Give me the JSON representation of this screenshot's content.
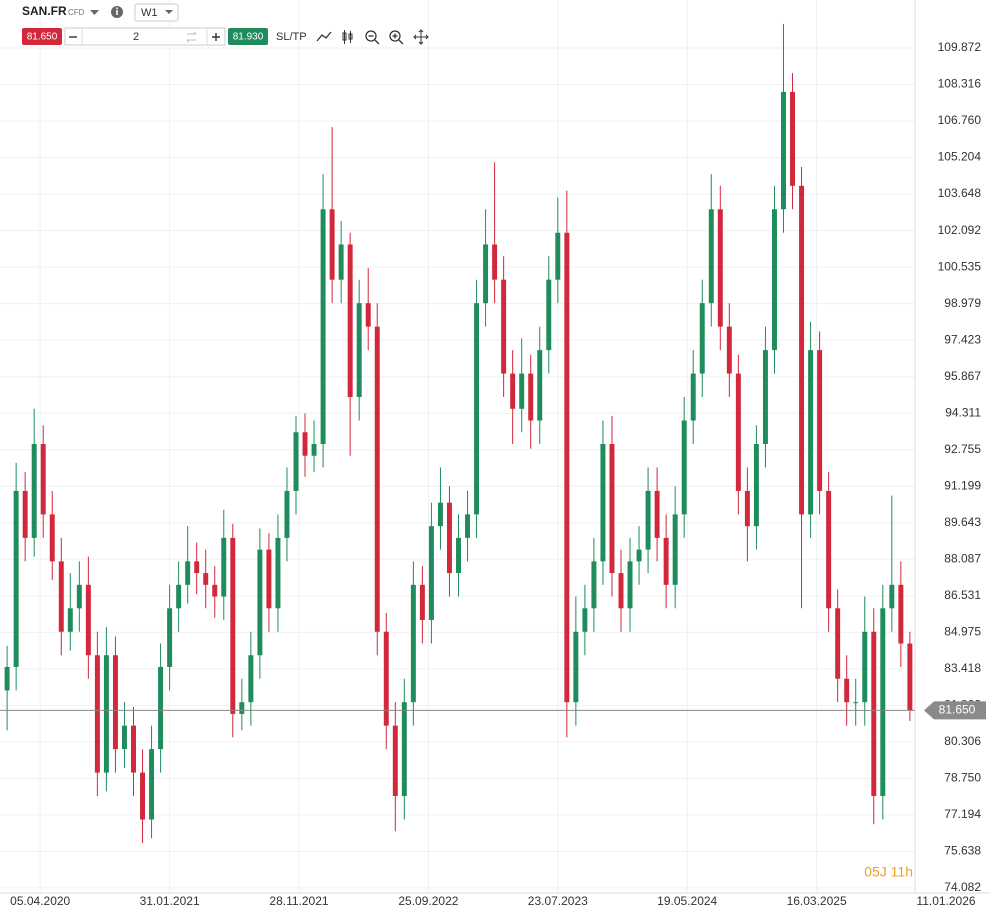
{
  "toolbar": {
    "symbol": "SAN.FR",
    "instrument": "CFD",
    "timeframe": "W1",
    "sell_price": "81.650",
    "quantity": "2",
    "buy_price": "81.930",
    "sltp": "SL/TP"
  },
  "chart_data": {
    "type": "candlestick",
    "x": [
      0,
      3,
      6,
      9,
      12,
      15,
      18,
      21,
      24,
      27,
      30,
      33,
      36,
      39,
      42,
      45,
      48,
      51,
      54,
      57,
      60,
      63,
      66,
      69,
      72,
      75,
      78,
      81,
      84,
      87,
      90,
      93,
      96,
      99,
      102,
      105,
      108,
      111,
      114,
      117,
      120,
      123,
      126,
      129,
      132,
      135,
      138,
      141,
      144,
      147,
      150,
      153,
      156,
      159,
      162,
      165,
      168,
      171,
      174,
      177,
      180,
      183,
      186,
      189,
      192,
      195,
      198,
      201,
      204,
      207,
      210,
      213,
      216,
      219,
      222,
      225,
      228,
      231,
      234,
      237,
      240,
      243,
      246,
      249,
      252,
      255,
      258,
      261,
      264,
      267,
      270,
      273,
      276,
      279,
      282,
      285,
      288,
      291,
      294,
      297,
      300
    ],
    "open": [
      82.5,
      83.5,
      91,
      89,
      93,
      90,
      88,
      85,
      86,
      87,
      84,
      79,
      84,
      80,
      81,
      79,
      77,
      80,
      83.5,
      86,
      87,
      88,
      87.5,
      87,
      86.5,
      89,
      81.5,
      82,
      84,
      88.5,
      86,
      89,
      91,
      93.5,
      92.5,
      93,
      103,
      100,
      101.5,
      95,
      99,
      98,
      85,
      81,
      78,
      82,
      87,
      85.5,
      89.5,
      90.5,
      87.5,
      89,
      90,
      99,
      101.5,
      100,
      96,
      94.5,
      96,
      94,
      97,
      100,
      102,
      82,
      85,
      86,
      88,
      93,
      87.5,
      86,
      88,
      88.5,
      91,
      89,
      87,
      90,
      94,
      96,
      99,
      103,
      98,
      96,
      91,
      89.5,
      93,
      97,
      103,
      108,
      104,
      90,
      97,
      91,
      86,
      83,
      82,
      82,
      85,
      78,
      86,
      87,
      84.5
    ],
    "high": [
      84.4,
      92.2,
      91.8,
      94.5,
      93.8,
      91,
      89,
      87.5,
      88,
      88.2,
      85,
      85.2,
      84.8,
      82,
      81.8,
      80,
      81,
      84.5,
      87,
      88,
      89.5,
      88.8,
      88.5,
      87.8,
      90.2,
      89.6,
      83,
      85,
      89.4,
      89.2,
      90,
      92,
      94.2,
      94.3,
      94,
      104.5,
      106.5,
      102.5,
      102,
      100,
      100.5,
      99,
      85.8,
      82,
      83,
      88,
      87.8,
      90.5,
      92,
      91.2,
      90,
      91,
      100,
      103,
      105,
      101,
      97,
      97.5,
      96.8,
      98,
      101,
      103.5,
      103.8,
      86.5,
      87,
      89,
      94,
      94.2,
      88.5,
      89,
      89.5,
      92,
      92,
      90,
      91.2,
      95,
      97,
      100,
      104.5,
      104,
      99,
      96.8,
      92,
      93.8,
      98,
      104,
      110.9,
      108.8,
      104.8,
      98.2,
      97.8,
      91.8,
      86.8,
      84,
      83,
      86.5,
      86,
      87,
      90.8,
      88,
      85
    ],
    "low": [
      80.8,
      82.5,
      88,
      88.2,
      89,
      87.2,
      84,
      84.2,
      85,
      83,
      78,
      78.2,
      79,
      79.2,
      78,
      76,
      76.2,
      79,
      82.5,
      85,
      86.2,
      86.6,
      86,
      85.6,
      85.5,
      80.5,
      80.8,
      81,
      83,
      85,
      85,
      88,
      90,
      91.6,
      91.8,
      92,
      99,
      99,
      92.5,
      94,
      97,
      84,
      80,
      76.5,
      77,
      81,
      84.5,
      84.5,
      88.5,
      86.5,
      86.5,
      88,
      89,
      98,
      99,
      95,
      93,
      93.5,
      92.8,
      93,
      96,
      99,
      80.5,
      81,
      84,
      85,
      87,
      86.5,
      85,
      85,
      87,
      87.5,
      88,
      86,
      86,
      89,
      93,
      95,
      98,
      97,
      95,
      90,
      88,
      88.5,
      92,
      96,
      102,
      103,
      86,
      89,
      90,
      85,
      82,
      81,
      81,
      81,
      76.8,
      77,
      85,
      83.5,
      81.2
    ],
    "close": [
      83.5,
      91,
      89,
      93,
      90,
      88,
      85,
      86,
      87,
      84,
      79,
      84,
      80,
      81,
      79,
      77,
      80,
      83.5,
      86,
      87,
      88,
      87.5,
      87,
      86.5,
      89,
      81.5,
      82,
      84,
      88.5,
      86,
      89,
      91,
      93.5,
      92.5,
      93,
      103,
      100,
      101.5,
      95,
      99,
      98,
      85,
      81,
      78,
      82,
      87,
      85.5,
      89.5,
      90.5,
      87.5,
      89,
      90,
      99,
      101.5,
      100,
      96,
      94.5,
      96,
      94,
      97,
      100,
      102,
      82,
      85,
      86,
      88,
      93,
      87.5,
      86,
      88,
      88.5,
      91,
      89,
      87,
      90,
      94,
      96,
      99,
      103,
      98,
      96,
      91,
      89.5,
      93,
      97,
      103,
      108,
      104,
      90,
      97,
      91,
      86,
      83,
      82,
      82,
      85,
      78,
      86,
      87,
      84.5,
      81.65
    ],
    "up_color": "#1e8c5c",
    "down_color": "#d2283c",
    "xlim": [
      -0.7,
      301.7
    ],
    "xticks": [
      {
        "value": 11,
        "label": "05.04.2020"
      },
      {
        "value": 54,
        "label": "31.01.2021"
      },
      {
        "value": 97,
        "label": "28.11.2021"
      },
      {
        "value": 140,
        "label": "25.09.2022"
      },
      {
        "value": 183,
        "label": "23.07.2023"
      },
      {
        "value": 226,
        "label": "19.05.2024"
      },
      {
        "value": 269,
        "label": "16.03.2025"
      },
      {
        "value": 312,
        "label": "11.01.2026"
      }
    ],
    "ylim": [
      73.87,
      111.49
    ],
    "yticks": [
      109.872,
      108.316,
      {
        "value": 106.76,
        "label": "106.760"
      },
      105.204,
      103.648,
      102.092,
      100.535,
      98.979,
      97.423,
      95.867,
      94.311,
      92.755,
      91.199,
      89.643,
      88.087,
      86.531,
      84.975,
      83.418,
      81.862,
      80.306,
      {
        "value": 78.75,
        "label": "78.750"
      },
      77.194,
      75.638,
      74.082
    ],
    "grid": true,
    "last_price": {
      "value": 81.65,
      "label": "81.650"
    },
    "countdown": "05J 11h"
  }
}
